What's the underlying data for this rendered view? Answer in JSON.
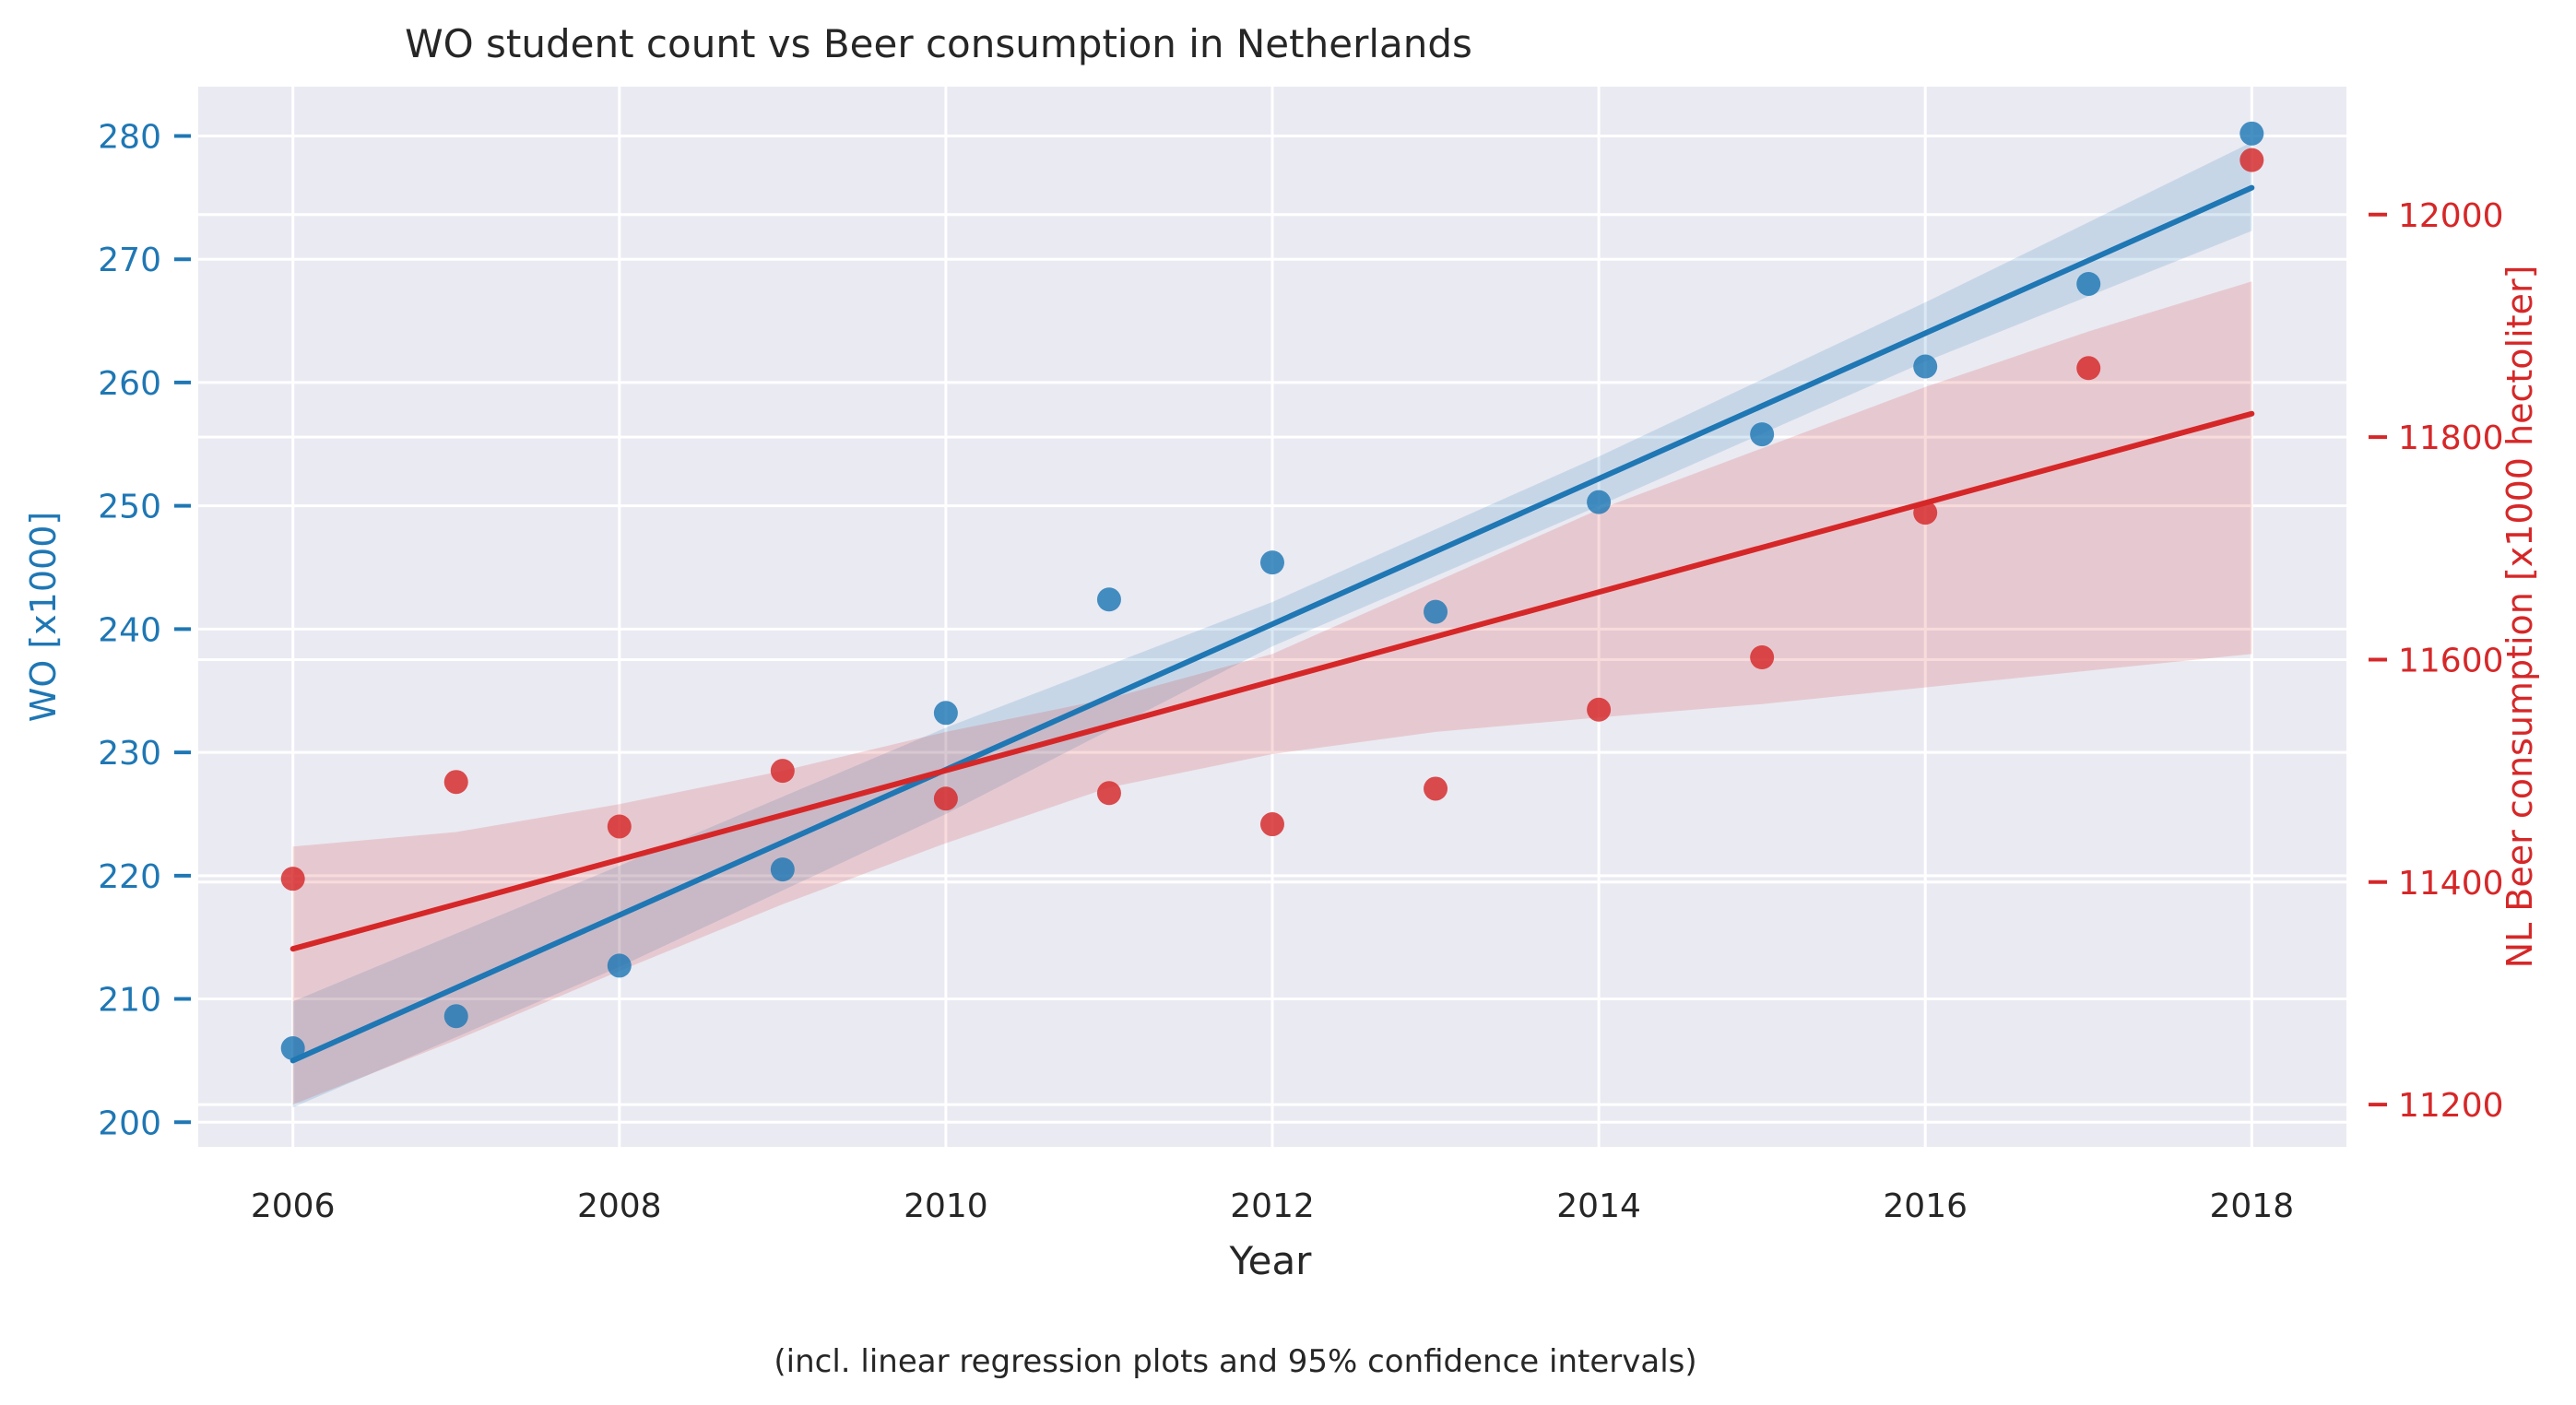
{
  "chart_data": {
    "type": "scatter",
    "title": "WO student count vs Beer consumption in Netherlands",
    "xlabel": "Year",
    "footnote": "(incl. linear regression plots and 95% confidence intervals)",
    "x": [
      2006,
      2007,
      2008,
      2009,
      2010,
      2011,
      2012,
      2013,
      2014,
      2015,
      2016,
      2017,
      2018
    ],
    "xlim": [
      2005.42,
      2018.58
    ],
    "xticks": [
      2006,
      2008,
      2010,
      2012,
      2014,
      2016,
      2018
    ],
    "grid": true,
    "series": [
      {
        "name": "WO",
        "axis": "left",
        "ylabel": "WO [x1000]",
        "color": "#1f77b4",
        "ylim": [
          198,
          284
        ],
        "yticks": [
          200,
          210,
          220,
          230,
          240,
          250,
          260,
          270,
          280
        ],
        "values": [
          206.0,
          208.6,
          212.7,
          220.5,
          233.2,
          242.4,
          245.4,
          241.4,
          250.3,
          255.8,
          261.3,
          268.0,
          280.2
        ],
        "regression": {
          "line": [
            [
              2006,
              205.0
            ],
            [
              2018,
              275.8
            ]
          ],
          "ci_upper": [
            [
              2006,
              209.8
            ],
            [
              2008,
              220.8
            ],
            [
              2010,
              232.0
            ],
            [
              2012,
              242.2
            ],
            [
              2014,
              254.0
            ],
            [
              2016,
              266.5
            ],
            [
              2018,
              279.5
            ]
          ],
          "ci_lower": [
            [
              2006,
              201.2
            ],
            [
              2008,
              212.6
            ],
            [
              2010,
              225.0
            ],
            [
              2012,
              238.6
            ],
            [
              2014,
              250.0
            ],
            [
              2016,
              261.7
            ],
            [
              2018,
              272.3
            ]
          ]
        }
      },
      {
        "name": "NL Beer consumption",
        "axis": "right",
        "ylabel": "NL Beer consumption [x1000 hectoliter]",
        "color": "#d62728",
        "ylim": [
          11162,
          12115
        ],
        "yticks": [
          11200,
          11400,
          11600,
          11800,
          12000
        ],
        "values": [
          11403,
          11490,
          11450,
          11500,
          11475,
          11480,
          11452,
          11484,
          11555,
          11602,
          11732,
          11862,
          12049
        ],
        "regression": {
          "line": [
            [
              2006,
              11340
            ],
            [
              2018,
              11821
            ]
          ],
          "ci_upper": [
            [
              2006,
              11432
            ],
            [
              2007,
              11445
            ],
            [
              2008,
              11470
            ],
            [
              2009,
              11500
            ],
            [
              2010,
              11535
            ],
            [
              2011,
              11565
            ],
            [
              2012,
              11605
            ],
            [
              2013,
              11670
            ],
            [
              2014,
              11735
            ],
            [
              2015,
              11790
            ],
            [
              2016,
              11845
            ],
            [
              2017,
              11895
            ],
            [
              2018,
              11940
            ]
          ],
          "ci_lower": [
            [
              2006,
              11200
            ],
            [
              2007,
              11258
            ],
            [
              2008,
              11320
            ],
            [
              2009,
              11380
            ],
            [
              2010,
              11435
            ],
            [
              2011,
              11485
            ],
            [
              2012,
              11515
            ],
            [
              2013,
              11535
            ],
            [
              2014,
              11548
            ],
            [
              2015,
              11560
            ],
            [
              2016,
              11575
            ],
            [
              2017,
              11590
            ],
            [
              2018,
              11605
            ]
          ]
        }
      }
    ]
  }
}
